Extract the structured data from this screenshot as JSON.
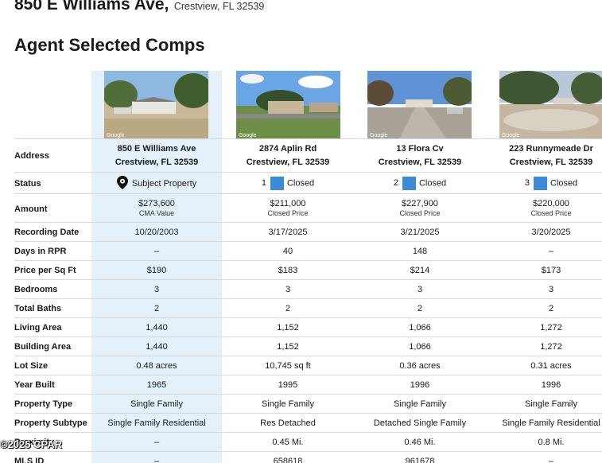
{
  "header": {
    "address": "850 E Williams Ave,",
    "city": "Crestview, FL 32539"
  },
  "section_title": "Agent Selected Comps",
  "photos": [
    {
      "icon": "street-photo-icon",
      "brand": "Google"
    },
    {
      "icon": "street-photo-icon",
      "brand": "Google"
    },
    {
      "icon": "street-photo-icon",
      "brand": "Google"
    },
    {
      "icon": "street-photo-icon",
      "brand": "Google"
    }
  ],
  "labels": {
    "address": "Address",
    "status": "Status",
    "amount": "Amount",
    "recording_date": "Recording Date",
    "days_in_rpr": "Days in RPR",
    "price_per_sqft": "Price per Sq Ft",
    "bedrooms": "Bedrooms",
    "total_baths": "Total Baths",
    "living_area": "Living Area",
    "building_area": "Building Area",
    "lot_size": "Lot Size",
    "year_built": "Year Built",
    "property_type": "Property Type",
    "property_subtype": "Property Subtype",
    "proximity": "Proximity",
    "mls_id": "MLS ID"
  },
  "properties": [
    {
      "street": "850 E Williams Ave",
      "city": "Crestview, FL 32539",
      "status_text": "Subject Property",
      "status_num": "",
      "amount": "$273,600",
      "amount_sub": "CMA Value",
      "recording_date": "10/20/2003",
      "days_in_rpr": "–",
      "price_per_sqft": "$190",
      "bedrooms": "3",
      "total_baths": "2",
      "living_area": "1,440",
      "building_area": "1,440",
      "lot_size": "0.48 acres",
      "year_built": "1965",
      "property_type": "Single Family",
      "property_subtype": "Single Family Residential",
      "proximity": "–",
      "mls_id": "–"
    },
    {
      "street": "2874 Aplin Rd",
      "city": "Crestview, FL 32539",
      "status_text": "Closed",
      "status_num": "1",
      "amount": "$211,000",
      "amount_sub": "Closed Price",
      "recording_date": "3/17/2025",
      "days_in_rpr": "40",
      "price_per_sqft": "$183",
      "bedrooms": "3",
      "total_baths": "2",
      "living_area": "1,152",
      "building_area": "1,152",
      "lot_size": "10,745 sq ft",
      "year_built": "1995",
      "property_type": "Single Family",
      "property_subtype": "Res Detached",
      "proximity": "0.45 Mi.",
      "mls_id": "658618"
    },
    {
      "street": "13 Flora Cv",
      "city": "Crestview, FL 32539",
      "status_text": "Closed",
      "status_num": "2",
      "amount": "$227,900",
      "amount_sub": "Closed Price",
      "recording_date": "3/21/2025",
      "days_in_rpr": "148",
      "price_per_sqft": "$214",
      "bedrooms": "3",
      "total_baths": "2",
      "living_area": "1,066",
      "building_area": "1,066",
      "lot_size": "0.36 acres",
      "year_built": "1996",
      "property_type": "Single Family",
      "property_subtype": "Detached Single Family",
      "proximity": "0.46 Mi.",
      "mls_id": "961678"
    },
    {
      "street": "223 Runnymeade Dr",
      "city": "Crestview, FL 32539",
      "status_text": "Closed",
      "status_num": "3",
      "amount": "$220,000",
      "amount_sub": "Closed Price",
      "recording_date": "3/20/2025",
      "days_in_rpr": "–",
      "price_per_sqft": "$173",
      "bedrooms": "3",
      "total_baths": "2",
      "living_area": "1,272",
      "building_area": "1,272",
      "lot_size": "0.31 acres",
      "year_built": "1996",
      "property_type": "Single Family",
      "property_subtype": "Single Family Residential",
      "proximity": "0.8 Mi.",
      "mls_id": "–"
    }
  ],
  "colors": {
    "subject_band": "#e4f1fb",
    "closed_marker": "#3d8ad6"
  },
  "watermark": "©2025 CPAR"
}
